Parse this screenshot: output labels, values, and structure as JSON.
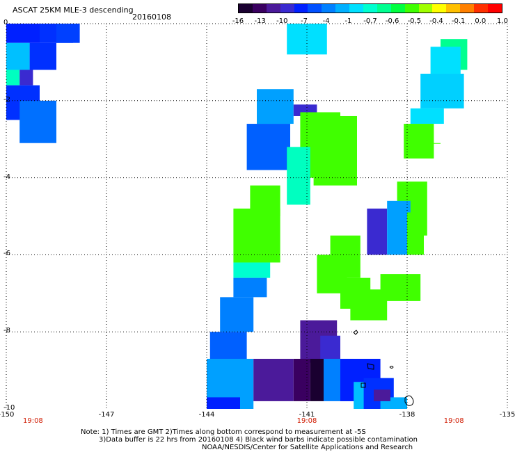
{
  "header": {
    "title": "ASCAT 25KM MLE-3 descending",
    "date": "20160108"
  },
  "colorbar": {
    "labels": [
      "-16",
      "-13",
      "-10",
      "-7",
      "-4",
      "-1",
      "-0.7",
      "-0.6",
      "-0.5",
      "-0.4",
      "-0.1",
      "0.0",
      "1.0"
    ],
    "colors": [
      "#1a0030",
      "#3a0060",
      "#4b1a9a",
      "#3a2ad0",
      "#0020ff",
      "#0050ff",
      "#0080ff",
      "#00b0ff",
      "#00e0ff",
      "#00ffd0",
      "#00ff90",
      "#00ff40",
      "#40ff00",
      "#a0ff00",
      "#ffff00",
      "#ffc000",
      "#ff8000",
      "#ff3000",
      "#ff0000"
    ]
  },
  "axes": {
    "x_ticks": [
      "-150",
      "-147",
      "-144",
      "-141",
      "-138",
      "-135"
    ],
    "y_ticks": [
      "0",
      "-2",
      "-4",
      "-6",
      "-8",
      "-10"
    ],
    "time_labels": [
      "19:08",
      "19:08",
      "19:08"
    ]
  },
  "footer": {
    "line1": "Note: 1) Times are GMT 2)Times along bottom correspond to measurement at -5S",
    "line2": "3)Data buffer is 22 hrs from 20160108 4) Black wind barbs indicate possible contamination",
    "line3": "NOAA/NESDIS/Center for Satellite Applications and Research"
  },
  "swaths": [
    {
      "name": "nw-swath",
      "cells": [
        [
          -150,
          0,
          -149,
          -0.5,
          "#0020ff"
        ],
        [
          -149,
          0,
          -148,
          -0.5,
          "#0030ff"
        ],
        [
          -148.5,
          0,
          -147.8,
          -0.5,
          "#0040ff"
        ],
        [
          -150,
          -0.5,
          -149.3,
          -1.2,
          "#00c0ff"
        ],
        [
          -149.3,
          -0.5,
          -148.5,
          -1.2,
          "#0030ff"
        ],
        [
          -150,
          -1.2,
          -149.6,
          -1.6,
          "#00ffc0"
        ],
        [
          -149.6,
          -1.2,
          -149.2,
          -1.6,
          "#3a2ad0"
        ],
        [
          -150,
          -1.6,
          -149,
          -2.5,
          "#0030ff"
        ],
        [
          -149.6,
          -2,
          -148.5,
          -3.1,
          "#0070ff"
        ]
      ]
    },
    {
      "name": "north-top",
      "cells": [
        [
          -141.6,
          0,
          -140.4,
          -0.8,
          "#00e0ff"
        ]
      ]
    },
    {
      "name": "east-column",
      "cells": [
        [
          -137,
          -0.4,
          -136.2,
          -1.2,
          "#00ff90"
        ],
        [
          -137.3,
          -0.6,
          -136.4,
          -1.3,
          "#00e0ff"
        ],
        [
          -137.6,
          -1.3,
          -136.3,
          -2.2,
          "#00d0ff"
        ],
        [
          -137.9,
          -2.2,
          -136.9,
          -2.6,
          "#00e0ff"
        ],
        [
          -138.1,
          -2.6,
          -137.2,
          -3.5,
          "#40ff00"
        ],
        [
          -138,
          -3.1,
          -137,
          -3.1,
          "#40ff00"
        ]
      ]
    },
    {
      "name": "central-band",
      "cells": [
        [
          -142.5,
          -1.7,
          -141.4,
          -2.6,
          "#00a0ff"
        ],
        [
          -142.8,
          -2.6,
          -141.5,
          -3.8,
          "#0060ff"
        ],
        [
          -141.4,
          -2.1,
          -140.7,
          -2.4,
          "#3a2ad0"
        ],
        [
          -141.2,
          -2.3,
          -140,
          -4,
          "#40ff00"
        ],
        [
          -140.8,
          -2.4,
          -139.5,
          -4.2,
          "#40ff00"
        ],
        [
          -141.6,
          -3.2,
          -140.9,
          -4.7,
          "#00ffc0"
        ],
        [
          -142.7,
          -4.2,
          -141.8,
          -5.0,
          "#40ff00"
        ],
        [
          -143.2,
          -4.8,
          -141.8,
          -6.2,
          "#40ff00"
        ],
        [
          -143.2,
          -6.2,
          -142.1,
          -6.6,
          "#00ffd0"
        ],
        [
          -143.2,
          -6.6,
          -142.2,
          -7.1,
          "#0080ff"
        ],
        [
          -143.6,
          -7.1,
          -142.6,
          -8.0,
          "#0080ff"
        ],
        [
          -143.9,
          -8.0,
          -142.8,
          -9.4,
          "#0060ff"
        ],
        [
          -144.0,
          -8.7,
          -142.6,
          -10.0,
          "#00a0ff"
        ],
        [
          -144.0,
          -9.7,
          -143.0,
          -10.0,
          "#0020ff"
        ]
      ]
    },
    {
      "name": "mid-green",
      "cells": [
        [
          -140.3,
          -5.5,
          -139.4,
          -6.6,
          "#40ff00"
        ],
        [
          -140.7,
          -6.0,
          -139.8,
          -7.0,
          "#40ff00"
        ],
        [
          -140.0,
          -6.6,
          -139.1,
          -7.4,
          "#40ff00"
        ]
      ]
    },
    {
      "name": "east-mid",
      "cells": [
        [
          -138.3,
          -4.1,
          -137.4,
          -5.5,
          "#40ff00"
        ],
        [
          -139.2,
          -4.8,
          -138.6,
          -6.0,
          "#3a2ad0"
        ],
        [
          -138.6,
          -4.6,
          -137.9,
          -6.0,
          "#00a0ff"
        ],
        [
          -138.0,
          -4.9,
          -137.5,
          -6.0,
          "#40ff00"
        ],
        [
          -138.8,
          -6.5,
          -137.6,
          -7.2,
          "#40ff00"
        ],
        [
          -139.7,
          -6.9,
          -138.6,
          -7.7,
          "#40ff00"
        ]
      ]
    },
    {
      "name": "south-dark",
      "cells": [
        [
          -141.2,
          -7.7,
          -140.1,
          -8.8,
          "#4b1a9a"
        ],
        [
          -140.6,
          -8.1,
          -140.0,
          -9.0,
          "#3a2ad0"
        ],
        [
          -142.6,
          -8.7,
          -141.4,
          -9.8,
          "#4b1a9a"
        ],
        [
          -141.4,
          -8.7,
          -140.9,
          -9.8,
          "#3a0060"
        ],
        [
          -140.9,
          -8.7,
          -140.5,
          -9.8,
          "#1a0030"
        ],
        [
          -140.5,
          -8.7,
          -139.6,
          -9.8,
          "#0080ff"
        ],
        [
          -140.0,
          -8.7,
          -138.8,
          -9.8,
          "#0020ff"
        ],
        [
          -139.6,
          -9.3,
          -138.8,
          -10.0,
          "#00c0ff"
        ],
        [
          -139.3,
          -9.2,
          -138.4,
          -10.0,
          "#0030ff"
        ],
        [
          -138.8,
          -9.7,
          -138.0,
          -10.0,
          "#00b0ff"
        ],
        [
          -139.0,
          -9.5,
          -138.5,
          -9.8,
          "#4b1a9a"
        ]
      ]
    }
  ]
}
